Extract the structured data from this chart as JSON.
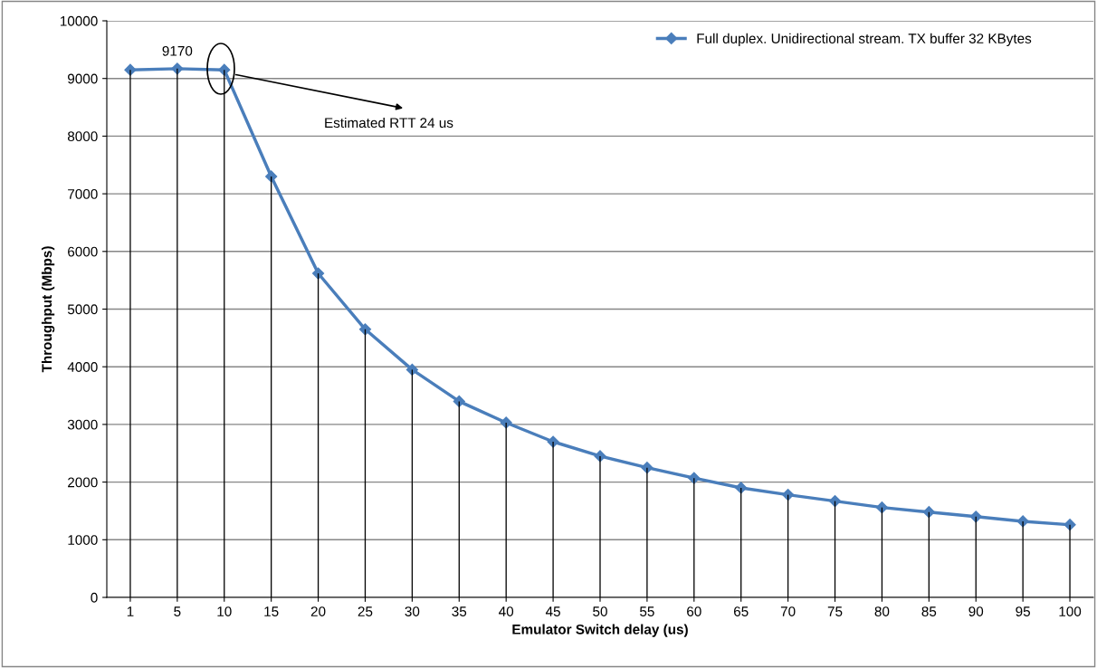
{
  "chart_data": {
    "type": "line",
    "xlabel": "Emulator Switch delay (us)",
    "ylabel": "Throughput (Mbps)",
    "categories": [
      "1",
      "5",
      "10",
      "15",
      "20",
      "25",
      "30",
      "35",
      "40",
      "45",
      "50",
      "55",
      "60",
      "65",
      "70",
      "75",
      "80",
      "85",
      "90",
      "95",
      "100"
    ],
    "series": [
      {
        "name": "Full duplex. Unidirectional stream. TX buffer 32 KBytes",
        "color": "#4a7ebb",
        "values": [
          9150,
          9170,
          9150,
          7300,
          5620,
          4650,
          3950,
          3400,
          3030,
          2700,
          2450,
          2250,
          2070,
          1900,
          1780,
          1670,
          1560,
          1480,
          1400,
          1320,
          1260
        ],
        "value_labels": [
          null,
          "9170",
          null,
          null,
          null,
          null,
          null,
          null,
          null,
          null,
          null,
          null,
          null,
          null,
          null,
          null,
          null,
          null,
          null,
          null,
          null
        ]
      },
      {
        "type": "bar",
        "color": "#000000",
        "values": [
          9150,
          9170,
          9150,
          7300,
          5620,
          4650,
          3950,
          3400,
          3030,
          2700,
          2450,
          2250,
          2070,
          1900,
          1780,
          1670,
          1560,
          1480,
          1400,
          1320,
          1260
        ]
      }
    ],
    "annotations": [
      "Estimated RTT 24 us"
    ],
    "ylim": [
      0,
      10000
    ],
    "yticks": [
      0,
      1000,
      2000,
      3000,
      4000,
      5000,
      6000,
      7000,
      8000,
      9000,
      10000
    ],
    "grid": "y",
    "legend": "top right",
    "marker": "diamond",
    "line_style": "solid"
  }
}
